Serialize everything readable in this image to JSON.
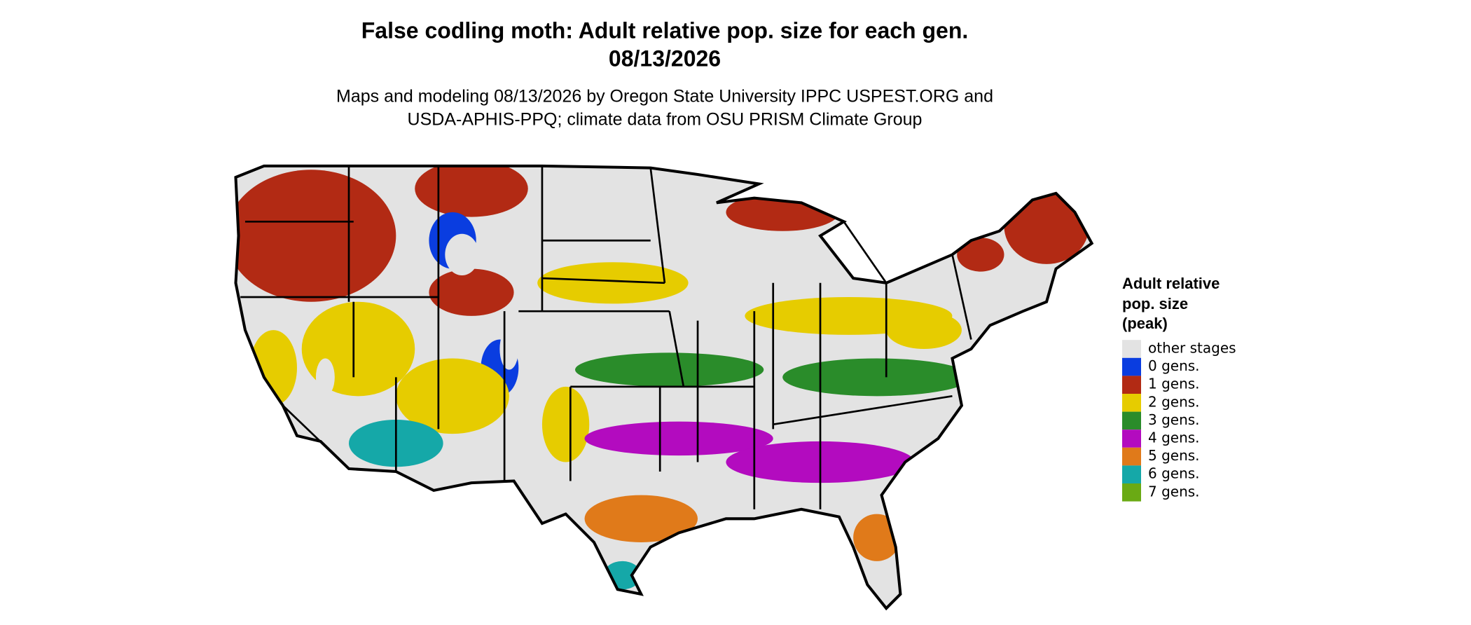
{
  "header": {
    "title": [
      "False codling moth: Adult relative pop. size for each gen.",
      "08/13/2026"
    ],
    "subtitle": [
      "Maps and modeling 08/13/2026 by Oregon State University IPPC USPEST.ORG and",
      "USDA-APHIS-PPQ; climate data from OSU PRISM Climate Group"
    ]
  },
  "legend": {
    "title": [
      "Adult relative",
      "pop. size",
      "(peak)"
    ],
    "items": [
      {
        "label": "other stages",
        "color": "#e3e3e3"
      },
      {
        "label": "0 gens.",
        "color": "#0a3de0"
      },
      {
        "label": "1 gens.",
        "color": "#b22a14"
      },
      {
        "label": "2 gens.",
        "color": "#e6cc00"
      },
      {
        "label": "3 gens.",
        "color": "#2a8c2a"
      },
      {
        "label": "4 gens.",
        "color": "#b30bbf"
      },
      {
        "label": "5 gens.",
        "color": "#e07a1a"
      },
      {
        "label": "6 gens.",
        "color": "#15a8a8"
      },
      {
        "label": "7 gens.",
        "color": "#6aaa14"
      }
    ]
  }
}
